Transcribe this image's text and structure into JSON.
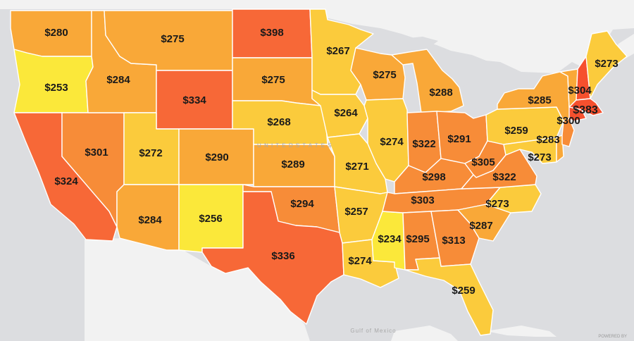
{
  "map": {
    "colors": {
      "water": "#dcdde0",
      "land": "#f2f2f2",
      "pale_yellow": "#fbe83a",
      "yellow": "#fbcb3c",
      "light_orange": "#f9a838",
      "orange": "#f78c38",
      "dark_orange": "#f76837",
      "red_orange": "#f6502e"
    },
    "gulf_label": "Gulf of Mexico",
    "credit": "POWERED BY",
    "states": [
      {
        "id": "WA",
        "label": "$280",
        "value": 280,
        "fill": "#f9a838"
      },
      {
        "id": "OR",
        "label": "$253",
        "value": 253,
        "fill": "#fbe83a"
      },
      {
        "id": "CA",
        "label": "$324",
        "value": 324,
        "fill": "#f76837"
      },
      {
        "id": "NV",
        "label": "$301",
        "value": 301,
        "fill": "#f78c38"
      },
      {
        "id": "ID",
        "label": "$284",
        "value": 284,
        "fill": "#f9a838"
      },
      {
        "id": "MT",
        "label": "$275",
        "value": 275,
        "fill": "#f9a838"
      },
      {
        "id": "WY",
        "label": "$334",
        "value": 334,
        "fill": "#f76837"
      },
      {
        "id": "UT",
        "label": "$272",
        "value": 272,
        "fill": "#fbcb3c"
      },
      {
        "id": "AZ",
        "label": "$284",
        "value": 284,
        "fill": "#f9a838"
      },
      {
        "id": "CO",
        "label": "$290",
        "value": 290,
        "fill": "#f9a838"
      },
      {
        "id": "NM",
        "label": "$256",
        "value": 256,
        "fill": "#fbe83a"
      },
      {
        "id": "ND",
        "label": "$398",
        "value": 398,
        "fill": "#f76837"
      },
      {
        "id": "SD",
        "label": "$275",
        "value": 275,
        "fill": "#f9a838"
      },
      {
        "id": "NE",
        "label": "$268",
        "value": 268,
        "fill": "#fbcb3c"
      },
      {
        "id": "KS",
        "label": "$289",
        "value": 289,
        "fill": "#f9a838"
      },
      {
        "id": "OK",
        "label": "$294",
        "value": 294,
        "fill": "#f78c38"
      },
      {
        "id": "TX",
        "label": "$336",
        "value": 336,
        "fill": "#f76837"
      },
      {
        "id": "MN",
        "label": "$267",
        "value": 267,
        "fill": "#fbcb3c"
      },
      {
        "id": "IA",
        "label": "$264",
        "value": 264,
        "fill": "#fbcb3c"
      },
      {
        "id": "MO",
        "label": "$271",
        "value": 271,
        "fill": "#fbcb3c"
      },
      {
        "id": "AR",
        "label": "$257",
        "value": 257,
        "fill": "#fbcb3c"
      },
      {
        "id": "LA",
        "label": "$274",
        "value": 274,
        "fill": "#fbcb3c"
      },
      {
        "id": "WI",
        "label": "$275",
        "value": 275,
        "fill": "#f9a838"
      },
      {
        "id": "IL",
        "label": "$274",
        "value": 274,
        "fill": "#fbcb3c"
      },
      {
        "id": "MS",
        "label": "$234",
        "value": 234,
        "fill": "#fbe83a"
      },
      {
        "id": "MI",
        "label": "$288",
        "value": 288,
        "fill": "#f9a838"
      },
      {
        "id": "IN",
        "label": "$322",
        "value": 322,
        "fill": "#f78c38"
      },
      {
        "id": "KY",
        "label": "$298",
        "value": 298,
        "fill": "#f78c38"
      },
      {
        "id": "TN",
        "label": "$303",
        "value": 303,
        "fill": "#f78c38"
      },
      {
        "id": "AL",
        "label": "$295",
        "value": 295,
        "fill": "#f78c38"
      },
      {
        "id": "OH",
        "label": "$291",
        "value": 291,
        "fill": "#f78c38"
      },
      {
        "id": "GA",
        "label": "$313",
        "value": 313,
        "fill": "#f78c38"
      },
      {
        "id": "FL",
        "label": "$259",
        "value": 259,
        "fill": "#fbcb3c"
      },
      {
        "id": "SC",
        "label": "$287",
        "value": 287,
        "fill": "#f9a838"
      },
      {
        "id": "NC",
        "label": "$273",
        "value": 273,
        "fill": "#fbcb3c"
      },
      {
        "id": "WV",
        "label": "$305",
        "value": 305,
        "fill": "#f78c38"
      },
      {
        "id": "VA",
        "label": "$322",
        "value": 322,
        "fill": "#f78c38"
      },
      {
        "id": "PA",
        "label": "$259",
        "value": 259,
        "fill": "#fbcb3c"
      },
      {
        "id": "NY",
        "label": "$285",
        "value": 285,
        "fill": "#f9a838"
      },
      {
        "id": "MD",
        "label": "$273",
        "value": 273,
        "fill": "#fbcb3c"
      },
      {
        "id": "DE",
        "label": "$283",
        "value": 283,
        "fill": "#f9a838"
      },
      {
        "id": "NJ",
        "label": "$300",
        "value": 300,
        "fill": "#f78c38"
      },
      {
        "id": "VT",
        "label": "$304",
        "value": 304,
        "fill": "#f9a838"
      },
      {
        "id": "NH",
        "label": "$383",
        "value": 383,
        "fill": "#f6502e"
      },
      {
        "id": "ME",
        "label": "$273",
        "value": 273,
        "fill": "#fbcb3c"
      },
      {
        "id": "MA",
        "label": "$383",
        "value": 383,
        "fill": "#f6502e"
      },
      {
        "id": "CT",
        "label": "",
        "value": null,
        "fill": "#f6502e"
      }
    ]
  }
}
